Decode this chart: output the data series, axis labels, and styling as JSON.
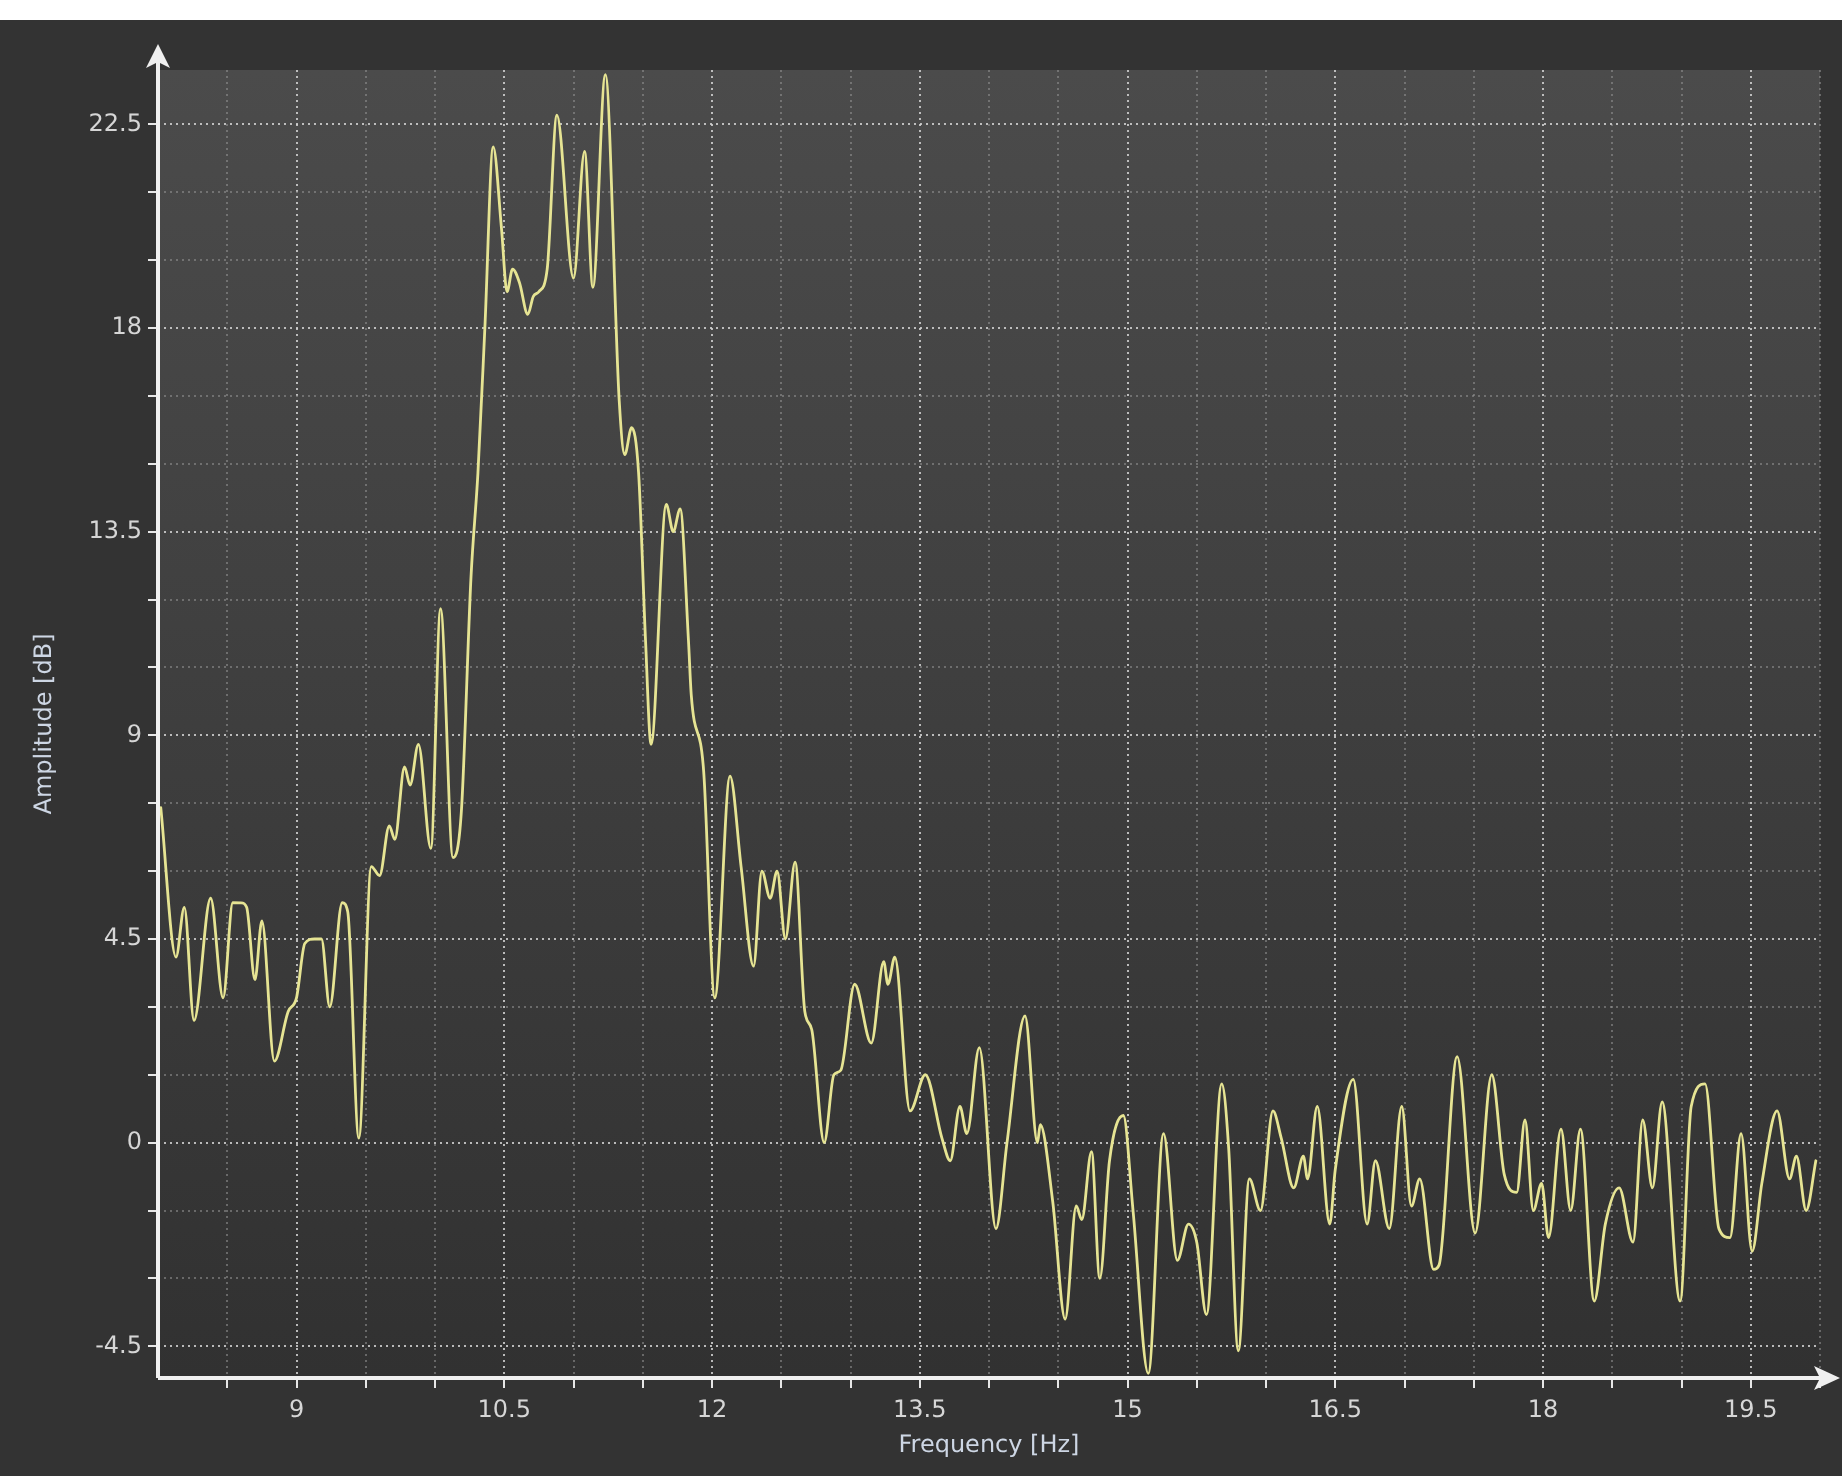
{
  "chart_data": {
    "type": "line",
    "xlabel": "Frequency [Hz]",
    "ylabel": "Amplitude [dB]",
    "color": "#e6e493",
    "x": [
      8.02,
      8.13,
      8.19,
      8.26,
      8.38,
      8.47,
      8.54,
      8.6,
      8.64,
      8.7,
      8.75,
      8.84,
      8.94,
      9,
      9.06,
      9.13,
      9.18,
      9.24,
      9.33,
      9.37,
      9.45,
      9.54,
      9.6,
      9.67,
      9.71,
      9.78,
      9.82,
      9.88,
      9.97,
      10.04,
      10.13,
      10.19,
      10.26,
      10.31,
      10.36,
      10.42,
      10.48,
      10.52,
      10.56,
      10.61,
      10.67,
      10.71,
      10.75,
      10.81,
      10.88,
      11,
      11.08,
      11.14,
      11.23,
      11.33,
      11.37,
      11.42,
      11.47,
      11.52,
      11.56,
      11.67,
      11.72,
      11.77,
      11.83,
      11.85,
      11.94,
      12.02,
      12.13,
      12.21,
      12.3,
      12.36,
      12.42,
      12.47,
      12.53,
      12.6,
      12.67,
      12.72,
      12.81,
      12.88,
      12.93,
      13.03,
      13.15,
      13.24,
      13.27,
      13.32,
      13.43,
      13.54,
      13.66,
      13.72,
      13.79,
      13.84,
      13.93,
      14.05,
      14.13,
      14.26,
      14.35,
      14.37,
      14.46,
      14.55,
      14.63,
      14.67,
      14.74,
      14.8,
      14.87,
      14.97,
      15.04,
      15.15,
      15.26,
      15.36,
      15.44,
      15.5,
      15.57,
      15.68,
      15.73,
      15.8,
      15.88,
      15.96,
      16.05,
      16.11,
      16.2,
      16.27,
      16.3,
      16.37,
      16.46,
      16.5,
      16.63,
      16.73,
      16.79,
      16.89,
      16.98,
      17.05,
      17.11,
      17.21,
      17.25,
      17.38,
      17.51,
      17.63,
      17.72,
      17.81,
      17.87,
      17.93,
      17.99,
      18.04,
      18.13,
      18.2,
      18.27,
      18.37,
      18.45,
      18.55,
      18.65,
      18.72,
      18.79,
      18.86,
      18.99,
      19.07,
      19.17,
      19.27,
      19.35,
      19.43,
      19.51,
      19.58,
      19.69,
      19.78,
      19.83,
      19.9,
      19.97
    ],
    "values": [
      7.4,
      4.1,
      5.2,
      2.7,
      5.4,
      3.2,
      5.3,
      5.3,
      5.2,
      3.6,
      4.9,
      1.8,
      2.9,
      3.2,
      4.4,
      4.5,
      4.5,
      3,
      5.3,
      5.1,
      0.1,
      6.1,
      5.9,
      7,
      6.7,
      8.3,
      7.9,
      8.8,
      6.5,
      11.8,
      6.3,
      7.3,
      12.5,
      14.8,
      18,
      22,
      20.2,
      18.8,
      19.3,
      19,
      18.3,
      18.7,
      18.8,
      19.3,
      22.7,
      19.1,
      21.9,
      18.9,
      23.6,
      16.4,
      15.2,
      15.8,
      14.8,
      11.1,
      8.8,
      14.1,
      13.5,
      14,
      11.1,
      9.9,
      8.2,
      3.2,
      8.1,
      6.1,
      3.9,
      6,
      5.4,
      6,
      4.5,
      6.2,
      2.9,
      2.5,
      0,
      1.5,
      1.6,
      3.5,
      2.2,
      4,
      3.5,
      4.1,
      0.7,
      1.5,
      0.1,
      -0.4,
      0.8,
      0.2,
      2.1,
      -1.9,
      0,
      2.8,
      0,
      0.4,
      -1.3,
      -3.9,
      -1.4,
      -1.7,
      -0.2,
      -3,
      -0.4,
      0.6,
      -1.5,
      -5.1,
      0.2,
      -2.6,
      -1.8,
      -2.2,
      -3.8,
      1.3,
      -0.1,
      -4.6,
      -0.8,
      -1.5,
      0.7,
      0.1,
      -1,
      -0.3,
      -0.8,
      0.8,
      -1.8,
      -0.6,
      1.4,
      -1.8,
      -0.4,
      -1.9,
      0.8,
      -1.4,
      -0.8,
      -2.8,
      -2.7,
      1.9,
      -2,
      1.5,
      -0.7,
      -1.1,
      0.5,
      -1.5,
      -0.9,
      -2.1,
      0.3,
      -1.5,
      0.3,
      -3.5,
      -1.8,
      -1,
      -2.2,
      0.5,
      -1,
      0.9,
      -3.5,
      0.8,
      1.3,
      -1.9,
      -2.1,
      0.2,
      -2.4,
      -0.9,
      0.7,
      -0.8,
      -0.3,
      -1.5,
      -0.4
    ],
    "xlim": [
      8,
      20
    ],
    "ylim": [
      -5.2,
      23.7
    ],
    "xticks": [
      {
        "value": 8.5,
        "label": null
      },
      9,
      {
        "value": 9.5,
        "label": null
      },
      {
        "value": 10,
        "label": null
      },
      10.5,
      {
        "value": 11,
        "label": null
      },
      {
        "value": 11.5,
        "label": null
      },
      12,
      {
        "value": 12.5,
        "label": null
      },
      {
        "value": 13,
        "label": null
      },
      13.5,
      {
        "value": 14,
        "label": null
      },
      {
        "value": 14.5,
        "label": null
      },
      15,
      {
        "value": 15.5,
        "label": null
      },
      {
        "value": 16,
        "label": null
      },
      16.5,
      {
        "value": 17,
        "label": null
      },
      {
        "value": 17.5,
        "label": null
      },
      18,
      {
        "value": 18.5,
        "label": null
      },
      {
        "value": 19,
        "label": null
      },
      19.5,
      {
        "value": 20,
        "label": null
      }
    ],
    "yticks": [
      -4.5,
      {
        "value": -3,
        "label": null
      },
      {
        "value": -1.5,
        "label": null
      },
      0,
      {
        "value": 1.5,
        "label": null
      },
      {
        "value": 3,
        "label": null
      },
      4.5,
      {
        "value": 6,
        "label": null
      },
      {
        "value": 7.5,
        "label": null
      },
      9,
      {
        "value": 10.5,
        "label": null
      },
      {
        "value": 12,
        "label": null
      },
      13.5,
      {
        "value": 15,
        "label": null
      },
      {
        "value": 16.5,
        "label": null
      },
      18,
      {
        "value": 19.5,
        "label": null
      },
      {
        "value": 21,
        "label": null
      },
      22.5
    ],
    "grid": true
  }
}
